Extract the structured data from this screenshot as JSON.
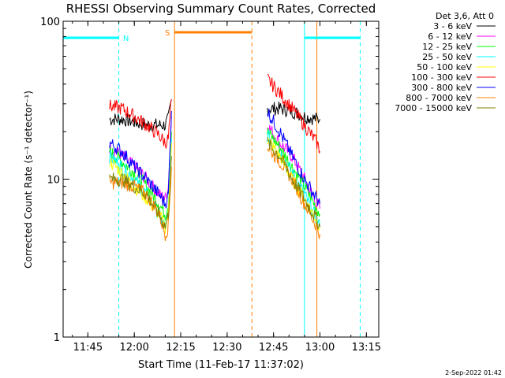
{
  "chart_data": {
    "type": "line",
    "title": "RHESSI Observing Summary Count Rates, Corrected",
    "xlabel": "Start Time (11-Feb-17 11:37:02)",
    "ylabel": "Corrected Count Rate (s⁻¹ detector⁻¹)",
    "y_scale": "log",
    "ylim": [
      1,
      100
    ],
    "xlim_minutes": [
      "11:37",
      "13:19"
    ],
    "x_ticks": [
      "11:45",
      "12:00",
      "12:15",
      "12:30",
      "12:45",
      "13:00",
      "13:15"
    ],
    "y_ticks": [
      "1",
      "10",
      "100"
    ],
    "grid": false,
    "legend": {
      "placement": "top-right",
      "header": "Det 3,6, Att 0",
      "entries": [
        {
          "label": "3 - 6 keV",
          "color": "#000000"
        },
        {
          "label": "6 - 12 keV",
          "color": "#ff00ff"
        },
        {
          "label": "12 - 25 keV",
          "color": "#00ff00"
        },
        {
          "label": "25 - 50 keV",
          "color": "#00ffff"
        },
        {
          "label": "50 - 100 keV",
          "color": "#ffff00"
        },
        {
          "label": "100 - 300 keV",
          "color": "#ff0000"
        },
        {
          "label": "300 - 800 keV",
          "color": "#0000ff"
        },
        {
          "label": "800 - 7000 keV",
          "color": "#ff8000"
        },
        {
          "label": "7000 - 15000 keV",
          "color": "#808000"
        }
      ]
    },
    "series": [
      {
        "name": "3 - 6 keV",
        "color": "#000000",
        "segments": [
          {
            "t": [
              "11:52",
              "11:56",
              "12:00",
              "12:04",
              "12:08",
              "12:10",
              "12:11",
              "12:12"
            ],
            "v": [
              24,
              24,
              23,
              22,
              22,
              22,
              24,
              32
            ]
          },
          {
            "t": [
              "12:43",
              "12:47",
              "12:51",
              "12:55",
              "12:59",
              "13:00"
            ],
            "v": [
              28,
              28,
              27,
              25,
              24,
              24
            ]
          }
        ]
      },
      {
        "name": "6 - 12 keV",
        "color": "#ff00ff",
        "segments": [
          {
            "t": [
              "11:52",
              "11:56",
              "12:00",
              "12:04",
              "12:08",
              "12:10",
              "12:11",
              "12:12"
            ],
            "v": [
              16,
              14,
              12,
              10,
              8,
              7.5,
              9,
              25
            ]
          },
          {
            "t": [
              "12:43",
              "12:47",
              "12:51",
              "12:55",
              "12:59",
              "13:00"
            ],
            "v": [
              22,
              17,
              14,
              10,
              7,
              6.5
            ]
          }
        ]
      },
      {
        "name": "12 - 25 keV",
        "color": "#00ff00",
        "segments": [
          {
            "t": [
              "11:52",
              "11:56",
              "12:00",
              "12:04",
              "12:08",
              "12:10",
              "12:11",
              "12:12"
            ],
            "v": [
              15,
              13,
              11,
              9,
              7,
              6,
              7,
              20
            ]
          },
          {
            "t": [
              "12:43",
              "12:47",
              "12:51",
              "12:55",
              "12:59",
              "13:00"
            ],
            "v": [
              20,
              16,
              12,
              9,
              6.5,
              6
            ]
          }
        ]
      },
      {
        "name": "25 - 50 keV",
        "color": "#00ffff",
        "segments": [
          {
            "t": [
              "11:52",
              "11:56",
              "12:00",
              "12:04",
              "12:08",
              "12:10",
              "12:11",
              "12:12"
            ],
            "v": [
              14,
              12,
              10,
              8,
              6,
              5,
              6,
              18
            ]
          },
          {
            "t": [
              "12:43",
              "12:47",
              "12:51",
              "12:55",
              "12:59",
              "13:00"
            ],
            "v": [
              19,
              15,
              11,
              8,
              5.5,
              5
            ]
          }
        ]
      },
      {
        "name": "50 - 100 keV",
        "color": "#ffff00",
        "segments": [
          {
            "t": [
              "11:52",
              "11:56",
              "12:00",
              "12:04",
              "12:08",
              "12:10",
              "12:11",
              "12:12"
            ],
            "v": [
              13,
              11,
              9,
              7.5,
              6,
              5,
              6,
              17
            ]
          },
          {
            "t": [
              "12:43",
              "12:47",
              "12:51",
              "12:55",
              "12:59",
              "13:00"
            ],
            "v": [
              18,
              14,
              10,
              7.5,
              5.5,
              5
            ]
          }
        ]
      },
      {
        "name": "100 - 300 keV",
        "color": "#ff0000",
        "segments": [
          {
            "t": [
              "11:52",
              "11:56",
              "12:00",
              "12:04",
              "12:08",
              "12:10",
              "12:11",
              "12:12"
            ],
            "v": [
              29,
              28,
              25,
              22,
              19,
              17,
              18,
              32
            ]
          },
          {
            "t": [
              "12:43",
              "12:47",
              "12:51",
              "12:55",
              "12:59",
              "13:00"
            ],
            "v": [
              43,
              35,
              28,
              22,
              17,
              15
            ]
          }
        ]
      },
      {
        "name": "300 - 800 keV",
        "color": "#0000ff",
        "segments": [
          {
            "t": [
              "11:52",
              "11:56",
              "12:00",
              "12:04",
              "12:08",
              "12:10",
              "12:11",
              "12:12"
            ],
            "v": [
              17,
              15,
              12,
              10,
              8,
              7,
              8,
              27
            ]
          },
          {
            "t": [
              "12:43",
              "12:47",
              "12:51",
              "12:55",
              "12:59",
              "13:00"
            ],
            "v": [
              27,
              20,
              14,
              10,
              7.5,
              7
            ]
          }
        ]
      },
      {
        "name": "800 - 7000 keV",
        "color": "#ff8000",
        "segments": [
          {
            "t": [
              "11:52",
              "11:56",
              "12:00",
              "12:04",
              "12:08",
              "12:10",
              "12:11",
              "12:12"
            ],
            "v": [
              9.5,
              9.5,
              9,
              8,
              6,
              4.5,
              5,
              12
            ]
          },
          {
            "t": [
              "12:43",
              "12:47",
              "12:51",
              "12:55",
              "12:59",
              "13:00"
            ],
            "v": [
              16,
              13,
              10,
              7,
              5,
              4.5
            ]
          }
        ]
      },
      {
        "name": "7000 - 15000 keV",
        "color": "#808000",
        "segments": [
          {
            "t": [
              "11:52",
              "11:56",
              "12:00",
              "12:04",
              "12:08",
              "12:10",
              "12:11",
              "12:12"
            ],
            "v": [
              10,
              10,
              9,
              8,
              6,
              5,
              6,
              14
            ]
          },
          {
            "t": [
              "12:43",
              "12:47",
              "12:51",
              "12:55",
              "12:59",
              "13:00"
            ],
            "v": [
              17,
              14,
              10,
              7.5,
              5.5,
              5
            ]
          }
        ]
      }
    ],
    "markers": [
      {
        "type": "solid-vline",
        "t": "11:37",
        "color": "#00ffff"
      },
      {
        "type": "dashed-vline",
        "t": "11:55",
        "color": "#00ffff"
      },
      {
        "type": "solid-vline",
        "t": "12:13",
        "color": "#ff8000"
      },
      {
        "type": "dashed-vline",
        "t": "12:38",
        "color": "#ff8000"
      },
      {
        "type": "solid-vline",
        "t": "12:55",
        "color": "#00ffff"
      },
      {
        "type": "solid-vline",
        "t": "12:59",
        "color": "#ff8000"
      },
      {
        "type": "dashed-vline",
        "t": "13:13",
        "color": "#00ffff"
      }
    ],
    "intervals": [
      {
        "kind": "night",
        "label": "N",
        "color": "#00ffff",
        "segments": [
          [
            "11:37",
            "11:55"
          ],
          [
            "12:55",
            "13:13"
          ]
        ]
      },
      {
        "kind": "saa",
        "label": "S",
        "color": "#ff8000",
        "segments": [
          [
            "12:13",
            "12:38"
          ]
        ]
      }
    ],
    "annotation_labels": [
      "N",
      "S"
    ],
    "timestamp": "2-Sep-2022 01:42"
  }
}
